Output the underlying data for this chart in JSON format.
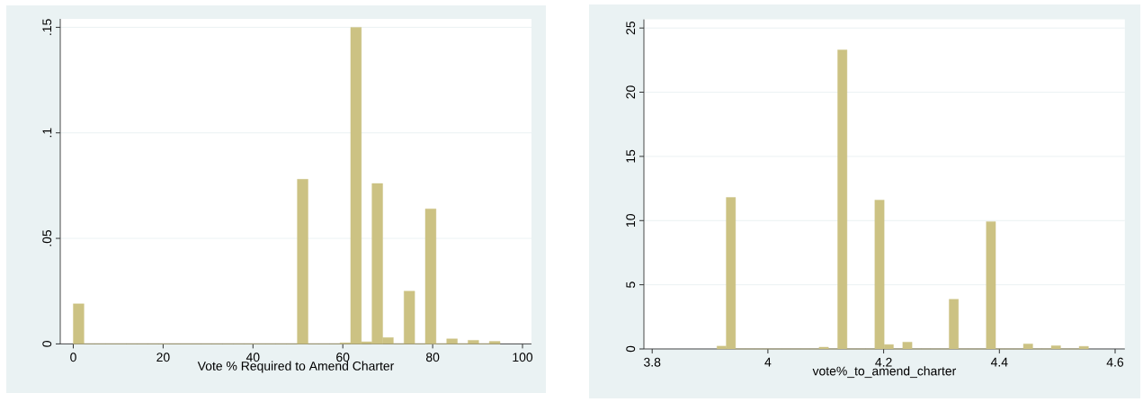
{
  "chart_data": [
    {
      "type": "histogram",
      "xlabel": "Vote % Required to Amend Charter",
      "color": "#ccc283",
      "bins": [
        0,
        2.375,
        4.75,
        7.125,
        9.5,
        11.875,
        14.25,
        16.625,
        19,
        21.375,
        23.75,
        26.125,
        28.5,
        30.875,
        33.25,
        35.625,
        38,
        40.375,
        42.75,
        45.125,
        47.5,
        49.875,
        52.25,
        54.625,
        57,
        59.375,
        61.75,
        64.125,
        66.5,
        68.875,
        71.25,
        73.625,
        76,
        78.375,
        80.75,
        83.125,
        85.5,
        87.875,
        90.25,
        92.625,
        95
      ],
      "values": [
        0.019,
        0,
        0,
        0,
        0,
        0,
        0,
        0,
        0,
        0,
        0,
        0,
        0,
        0,
        0,
        0,
        0,
        0,
        0,
        0,
        0,
        0.078,
        0,
        0,
        0,
        0.0005,
        0.15,
        0.001,
        0.076,
        0.003,
        0,
        0.025,
        0,
        0.064,
        0,
        0.0024,
        0,
        0.0017,
        0,
        0.0012
      ],
      "xlim": [
        -2.9,
        102
      ],
      "ylim": [
        0,
        0.154
      ],
      "xticks": [
        0,
        20,
        40,
        60,
        80,
        100
      ],
      "yticks": [
        {
          "value": 0,
          "label": "0"
        },
        {
          "value": 0.05,
          "label": ".05"
        },
        {
          "value": 0.1,
          "label": ".1"
        },
        {
          "value": 0.15,
          "label": ".15"
        }
      ],
      "grid": "y"
    },
    {
      "type": "histogram",
      "xlabel": "vote%_to_amend_charter",
      "color": "#ccc283",
      "bins": [
        3.912,
        3.928,
        3.944,
        3.9601,
        3.9762,
        3.9922,
        4.0083,
        4.0243,
        4.0404,
        4.0564,
        4.0725,
        4.0885,
        4.1046,
        4.1206,
        4.1367,
        4.1527,
        4.1688,
        4.1848,
        4.2009,
        4.2169,
        4.233,
        4.249,
        4.2651,
        4.2811,
        4.2972,
        4.3132,
        4.3292,
        4.3453,
        4.3613,
        4.3774,
        4.3934,
        4.4095,
        4.4255,
        4.4416,
        4.4576,
        4.4737,
        4.4897,
        4.5058,
        4.5218,
        4.5379,
        4.5539
      ],
      "values": [
        0.22,
        11.8,
        0,
        0,
        0,
        0,
        0,
        0,
        0,
        0,
        0,
        0.14,
        0,
        23.3,
        0,
        0,
        0,
        11.6,
        0.34,
        0,
        0.53,
        0,
        0,
        0,
        0,
        3.87,
        0,
        0,
        0,
        9.92,
        0,
        0,
        0,
        0.39,
        0,
        0,
        0.25,
        0,
        0,
        0.2
      ],
      "xlim": [
        3.7857,
        4.6168
      ],
      "ylim": [
        0,
        25.67
      ],
      "xticks": [
        3.8,
        4,
        4.2,
        4.4,
        4.6
      ],
      "yticks": [
        0,
        5,
        10,
        15,
        20,
        25
      ],
      "grid": "y"
    }
  ]
}
